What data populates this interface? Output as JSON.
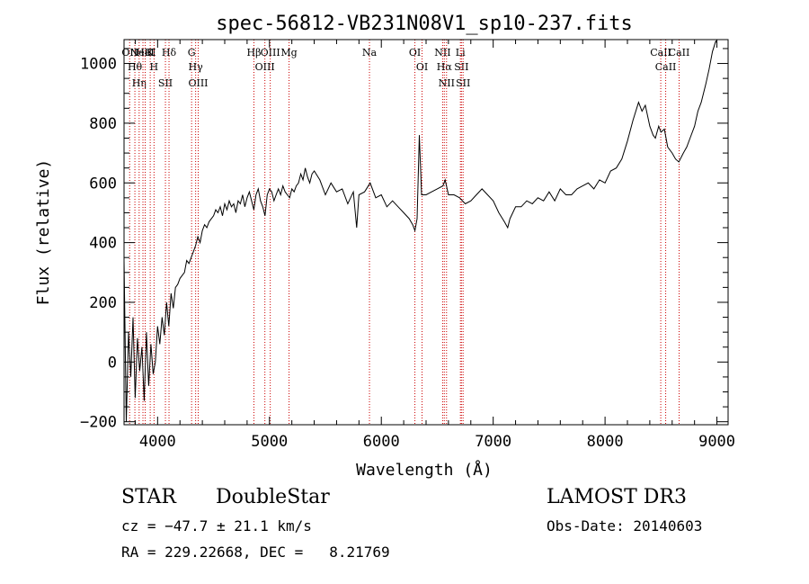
{
  "chart_data": {
    "type": "line",
    "title": "spec-56812-VB231N08V1_sp10-237.fits",
    "xlabel": "Wavelength (Å)",
    "ylabel": "Flux (relative)",
    "xlim": [
      3700,
      9100
    ],
    "ylim": [
      -210,
      1080
    ],
    "x_ticks": [
      4000,
      5000,
      6000,
      7000,
      8000,
      9000
    ],
    "x_tick_labels": [
      "4000",
      "5000",
      "6000",
      "7000",
      "8000",
      "9000"
    ],
    "y_ticks": [
      -200,
      0,
      200,
      400,
      600,
      800,
      1000
    ],
    "y_tick_labels": [
      "−200",
      "0",
      "200",
      "400",
      "600",
      "800",
      "1000"
    ],
    "grid": false,
    "line_color": "#000000",
    "marker_color": "#cc0000",
    "series": [
      {
        "x": [
          3700,
          3720,
          3740,
          3760,
          3780,
          3800,
          3820,
          3840,
          3860,
          3880,
          3900,
          3920,
          3940,
          3960,
          3980,
          4000,
          4020,
          4040,
          4060,
          4080,
          4100,
          4120,
          4140,
          4160,
          4180,
          4200,
          4220,
          4240,
          4260,
          4280,
          4300,
          4320,
          4340,
          4360,
          4380,
          4400,
          4420,
          4440,
          4460,
          4480,
          4500,
          4520,
          4540,
          4560,
          4580,
          4600,
          4620,
          4640,
          4660,
          4680,
          4700,
          4720,
          4740,
          4760,
          4780,
          4800,
          4820,
          4840,
          4860,
          4880,
          4900,
          4920,
          4940,
          4960,
          4980,
          5000,
          5020,
          5040,
          5060,
          5080,
          5100,
          5120,
          5140,
          5160,
          5180,
          5200,
          5220,
          5240,
          5260,
          5280,
          5300,
          5320,
          5340,
          5360,
          5380,
          5400,
          5450,
          5500,
          5550,
          5600,
          5650,
          5700,
          5750,
          5780,
          5800,
          5850,
          5900,
          5950,
          6000,
          6050,
          6100,
          6150,
          6200,
          6250,
          6280,
          6300,
          6320,
          6340,
          6360,
          6400,
          6450,
          6500,
          6550,
          6570,
          6600,
          6650,
          6700,
          6750,
          6800,
          6850,
          6900,
          6950,
          7000,
          7050,
          7100,
          7130,
          7150,
          7200,
          7250,
          7300,
          7350,
          7400,
          7450,
          7500,
          7550,
          7600,
          7650,
          7700,
          7750,
          7800,
          7850,
          7900,
          7950,
          8000,
          8050,
          8100,
          8150,
          8200,
          8250,
          8300,
          8330,
          8360,
          8400,
          8430,
          8450,
          8480,
          8500,
          8530,
          8560,
          8600,
          8630,
          8660,
          8700,
          8730,
          8760,
          8800,
          8830,
          8860,
          8900,
          8930,
          8960,
          8990,
          9000
        ],
        "y": [
          340,
          -200,
          100,
          -50,
          150,
          -120,
          80,
          -30,
          50,
          -130,
          100,
          -80,
          60,
          -40,
          0,
          120,
          60,
          150,
          90,
          200,
          120,
          230,
          180,
          250,
          260,
          280,
          290,
          300,
          340,
          330,
          350,
          370,
          390,
          420,
          400,
          440,
          460,
          450,
          470,
          480,
          490,
          510,
          500,
          520,
          490,
          530,
          510,
          540,
          520,
          530,
          500,
          540,
          530,
          560,
          520,
          550,
          570,
          540,
          510,
          560,
          580,
          540,
          520,
          490,
          560,
          580,
          570,
          540,
          560,
          580,
          560,
          590,
          570,
          560,
          550,
          580,
          570,
          590,
          600,
          630,
          610,
          650,
          620,
          600,
          630,
          640,
          610,
          560,
          600,
          570,
          580,
          530,
          570,
          450,
          560,
          570,
          600,
          550,
          560,
          520,
          540,
          520,
          500,
          480,
          460,
          440,
          480,
          760,
          560,
          560,
          570,
          580,
          590,
          610,
          560,
          560,
          550,
          530,
          540,
          560,
          580,
          560,
          540,
          500,
          470,
          450,
          480,
          520,
          520,
          540,
          530,
          550,
          540,
          570,
          540,
          580,
          560,
          560,
          580,
          590,
          600,
          580,
          610,
          600,
          640,
          650,
          680,
          740,
          810,
          870,
          840,
          860,
          790,
          760,
          750,
          790,
          770,
          780,
          720,
          700,
          680,
          670,
          700,
          720,
          750,
          790,
          840,
          870,
          930,
          980,
          1040,
          1075,
          1070
        ]
      }
    ],
    "line_markers": [
      {
        "x": 3750,
        "labels": [
          "OII"
        ]
      },
      {
        "x": 3797,
        "labels": [
          "Hθ"
        ]
      },
      {
        "x": 3835,
        "labels": [
          "Hη"
        ]
      },
      {
        "x": 3869,
        "labels": [
          "NeIII"
        ]
      },
      {
        "x": 3889,
        "labels": [
          "HeI"
        ]
      },
      {
        "x": 3934,
        "labels": [
          "K"
        ]
      },
      {
        "x": 3968,
        "labels": [
          "H"
        ]
      },
      {
        "x": 4070,
        "labels": [
          "SII"
        ]
      },
      {
        "x": 4102,
        "labels": [
          "Hδ"
        ]
      },
      {
        "x": 4304,
        "labels": [
          "G"
        ]
      },
      {
        "x": 4340,
        "labels": [
          "Hγ"
        ]
      },
      {
        "x": 4363,
        "labels": [
          "OIII"
        ]
      },
      {
        "x": 4861,
        "labels": [
          "Hβ"
        ]
      },
      {
        "x": 4959,
        "labels": [
          "OIII"
        ]
      },
      {
        "x": 5007,
        "labels": [
          "OIII"
        ]
      },
      {
        "x": 5175,
        "labels": [
          "Mg"
        ]
      },
      {
        "x": 5894,
        "labels": [
          "Na"
        ]
      },
      {
        "x": 6300,
        "labels": [
          "OI"
        ]
      },
      {
        "x": 6364,
        "labels": [
          "OI"
        ]
      },
      {
        "x": 6548,
        "labels": [
          "NII"
        ]
      },
      {
        "x": 6563,
        "labels": [
          "Hα"
        ]
      },
      {
        "x": 6583,
        "labels": [
          "NII"
        ]
      },
      {
        "x": 6707,
        "labels": [
          "Li"
        ]
      },
      {
        "x": 6716,
        "labels": [
          "SII"
        ]
      },
      {
        "x": 6731,
        "labels": [
          "SII"
        ]
      },
      {
        "x": 8498,
        "labels": [
          "CaII"
        ]
      },
      {
        "x": 8542,
        "labels": [
          "CaII"
        ]
      },
      {
        "x": 8662,
        "labels": [
          "CaII"
        ]
      }
    ]
  },
  "info": {
    "object_class": "STAR",
    "subclass": "DoubleStar",
    "survey": "LAMOST DR3",
    "redshift": "cz = −47.7 ± 21.1 km/s",
    "obs_date": "Obs-Date: 20140603",
    "coords": "RA = 229.22668, DEC =   8.21769"
  }
}
